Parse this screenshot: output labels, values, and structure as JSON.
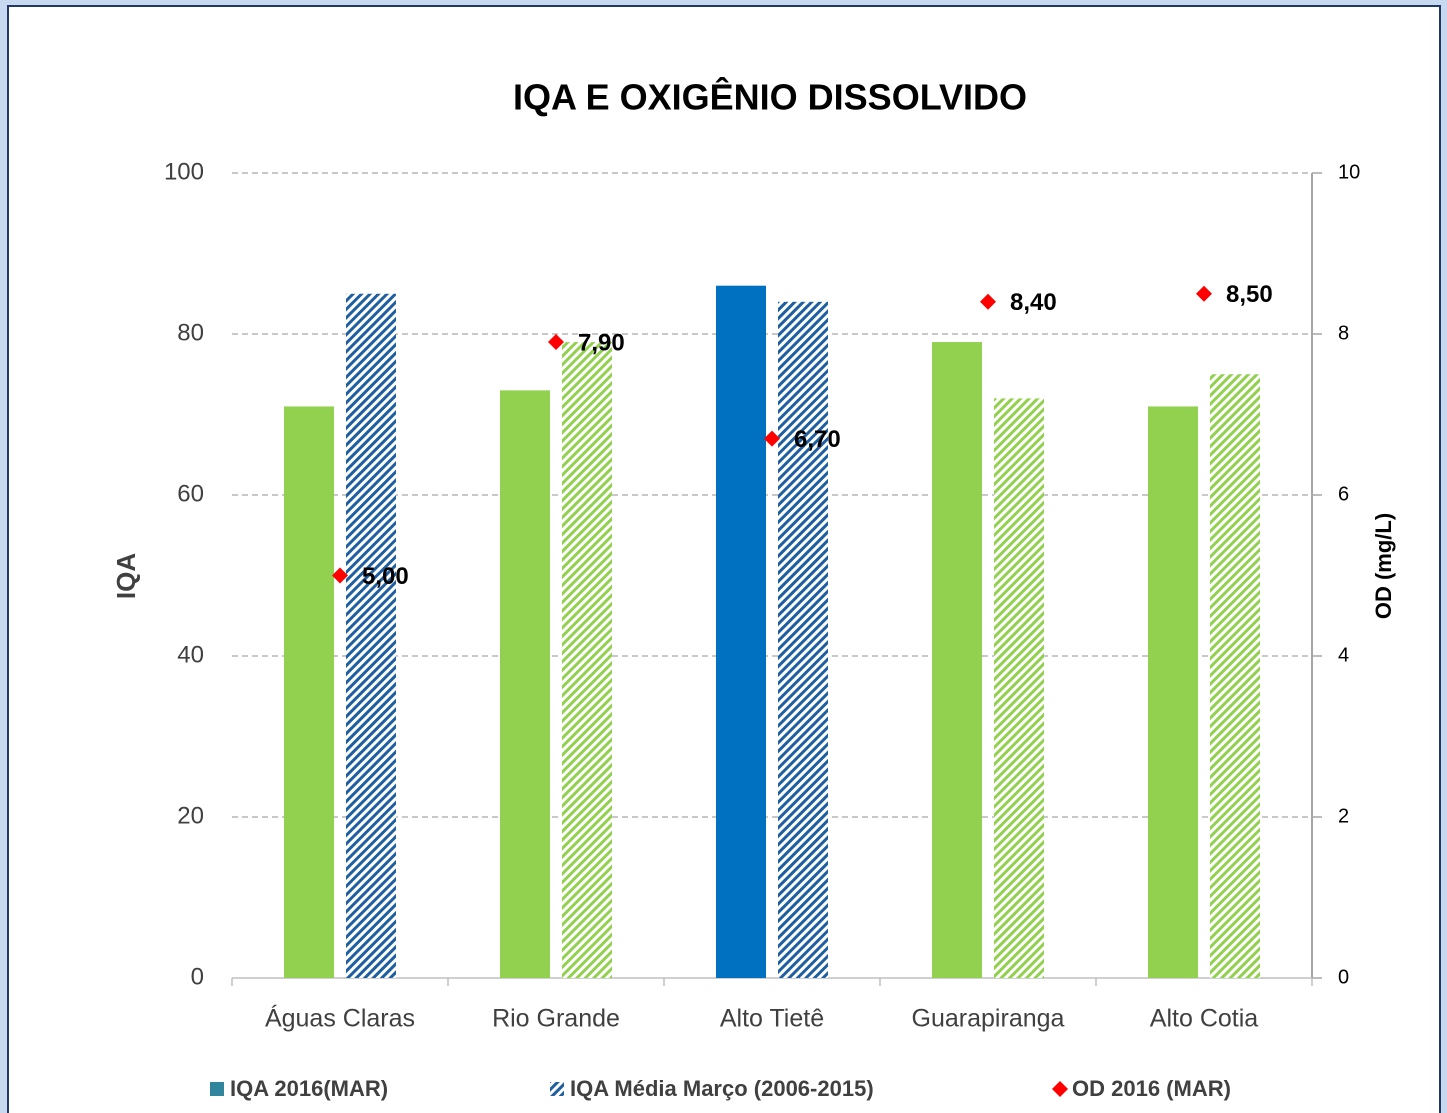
{
  "chart_data": {
    "type": "bar",
    "title": "IQA E OXIGÊNIO DISSOLVIDO",
    "ylabel": "IQA",
    "y2label": "OD (mg/L)",
    "categories": [
      "Águas Claras",
      "Rio Grande",
      "Alto Tietê",
      "Guarapiranga",
      "Alto Cotia"
    ],
    "series": [
      {
        "name": "IQA 2016(MAR)",
        "color": "#31859c",
        "colors": [
          "#92d050",
          "#92d050",
          "#0070c0",
          "#92d050",
          "#92d050"
        ],
        "values": [
          71,
          73,
          86,
          79,
          71
        ]
      },
      {
        "name": "IQA Média Março (2006-2015)",
        "color": "#1f5fa0",
        "pattern": "hatch",
        "colors": [
          "#1f5fa0",
          "#92d050",
          "#1f5fa0",
          "#92d050",
          "#92d050"
        ],
        "values": [
          85,
          79,
          84,
          72,
          75
        ]
      },
      {
        "name": "OD 2016 (MAR)",
        "type": "scatter",
        "marker": "diamond",
        "axis": "y2",
        "color": "#ff0000",
        "values": [
          5.0,
          7.9,
          6.7,
          8.4,
          8.5
        ],
        "value_labels": [
          "5,00",
          "7,90",
          "6,70",
          "8,40",
          "8,50"
        ]
      }
    ],
    "ylim": [
      0,
      100
    ],
    "yticks": [
      0,
      20,
      40,
      60,
      80,
      100
    ],
    "y2lim": [
      0,
      10
    ],
    "y2ticks": [
      0,
      2,
      4,
      6,
      8,
      10
    ],
    "grid": true,
    "legend": "bottom"
  }
}
